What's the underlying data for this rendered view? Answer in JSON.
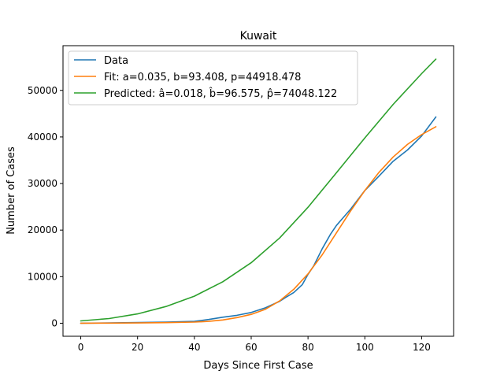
{
  "chart_data": {
    "type": "line",
    "title": "Kuwait",
    "xlabel": "Days Since First Case",
    "ylabel": "Number of Cases",
    "xlim": [
      -6.25,
      131.25
    ],
    "ylim": [
      -2800,
      59600
    ],
    "xticks": [
      0,
      20,
      40,
      60,
      80,
      100,
      120
    ],
    "yticks": [
      0,
      10000,
      20000,
      30000,
      40000,
      50000
    ],
    "grid": false,
    "legend_position": "top-left",
    "series": [
      {
        "name": "Data",
        "color": "#1f77b4",
        "x": [
          0,
          10,
          20,
          30,
          40,
          45,
          50,
          55,
          60,
          65,
          70,
          72,
          75,
          78,
          80,
          82,
          85,
          88,
          90,
          92,
          95,
          100,
          105,
          110,
          115,
          120,
          125
        ],
        "y": [
          0,
          50,
          150,
          250,
          400,
          800,
          1300,
          1700,
          2300,
          3300,
          4700,
          5500,
          6600,
          8300,
          10500,
          12300,
          16000,
          19200,
          21000,
          22400,
          24500,
          28500,
          31600,
          34800,
          37200,
          40200,
          44300
        ]
      },
      {
        "name": "Fit: a=0.035, b=93.408, p=44918.478",
        "color": "#ff7f0e",
        "x": [
          0,
          10,
          20,
          30,
          40,
          45,
          50,
          55,
          60,
          65,
          70,
          75,
          80,
          85,
          90,
          95,
          100,
          105,
          110,
          115,
          120,
          125
        ],
        "y": [
          0,
          20,
          60,
          120,
          250,
          400,
          700,
          1200,
          1900,
          3000,
          4800,
          7300,
          10600,
          14700,
          19400,
          24100,
          28500,
          32400,
          35700,
          38400,
          40500,
          42200
        ]
      },
      {
        "name": "Predicted: â=0.018, b̂=96.575, p̂=74048.122",
        "color": "#2ca02c",
        "x": [
          0,
          10,
          20,
          30,
          40,
          50,
          60,
          70,
          80,
          90,
          100,
          110,
          120,
          125
        ],
        "y": [
          500,
          1000,
          2000,
          3600,
          5800,
          8900,
          13000,
          18300,
          24900,
          32300,
          39800,
          47000,
          53600,
          56700
        ]
      }
    ]
  }
}
